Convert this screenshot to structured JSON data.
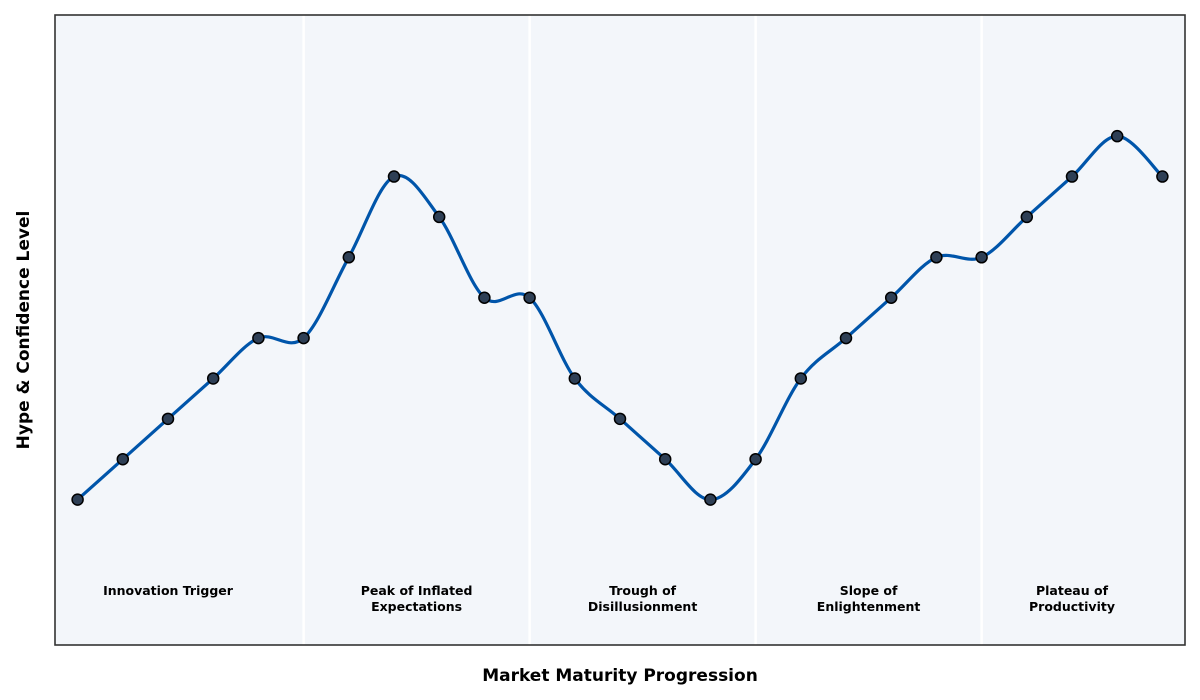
{
  "chart_data": {
    "type": "line",
    "xlabel": "Market Maturity Progression",
    "ylabel": "Hype & Confidence Level",
    "smooth": true,
    "markers": true,
    "grid": false,
    "xlim": [
      -0.5,
      24.5
    ],
    "ylim": [
      1.4,
      9.2
    ],
    "phases": [
      {
        "label": [
          "Innovation Trigger"
        ],
        "start": -0.5,
        "end": 5.0
      },
      {
        "label": [
          "Peak of Inflated",
          "Expectations"
        ],
        "start": 5.0,
        "end": 10.0
      },
      {
        "label": [
          "Trough of",
          "Disillusionment"
        ],
        "start": 10.0,
        "end": 15.0
      },
      {
        "label": [
          "Slope of",
          "Enlightenment"
        ],
        "start": 15.0,
        "end": 20.0
      },
      {
        "label": [
          "Plateau of",
          "Productivity"
        ],
        "start": 20.0,
        "end": 24.5
      }
    ],
    "series": [
      {
        "x": [
          0,
          1,
          2,
          3,
          4,
          5,
          6,
          7,
          8,
          9,
          10,
          11,
          12,
          13,
          14,
          15,
          16,
          17,
          18,
          19,
          20,
          21,
          22,
          23,
          24
        ],
        "values": [
          3.2,
          3.7,
          4.2,
          4.7,
          5.2,
          5.2,
          6.2,
          7.2,
          6.7,
          5.7,
          5.7,
          4.7,
          4.2,
          3.7,
          3.2,
          3.7,
          4.7,
          5.2,
          5.7,
          6.2,
          6.2,
          6.7,
          7.2,
          7.7,
          7.2
        ]
      }
    ],
    "colors": {
      "line": "#0055aa",
      "marker_fill": "#2e3f55",
      "marker_edge": "#000000",
      "plot_background": "#f3f6fa",
      "phase_divider": "#ffffff",
      "frame": "#333333"
    }
  }
}
